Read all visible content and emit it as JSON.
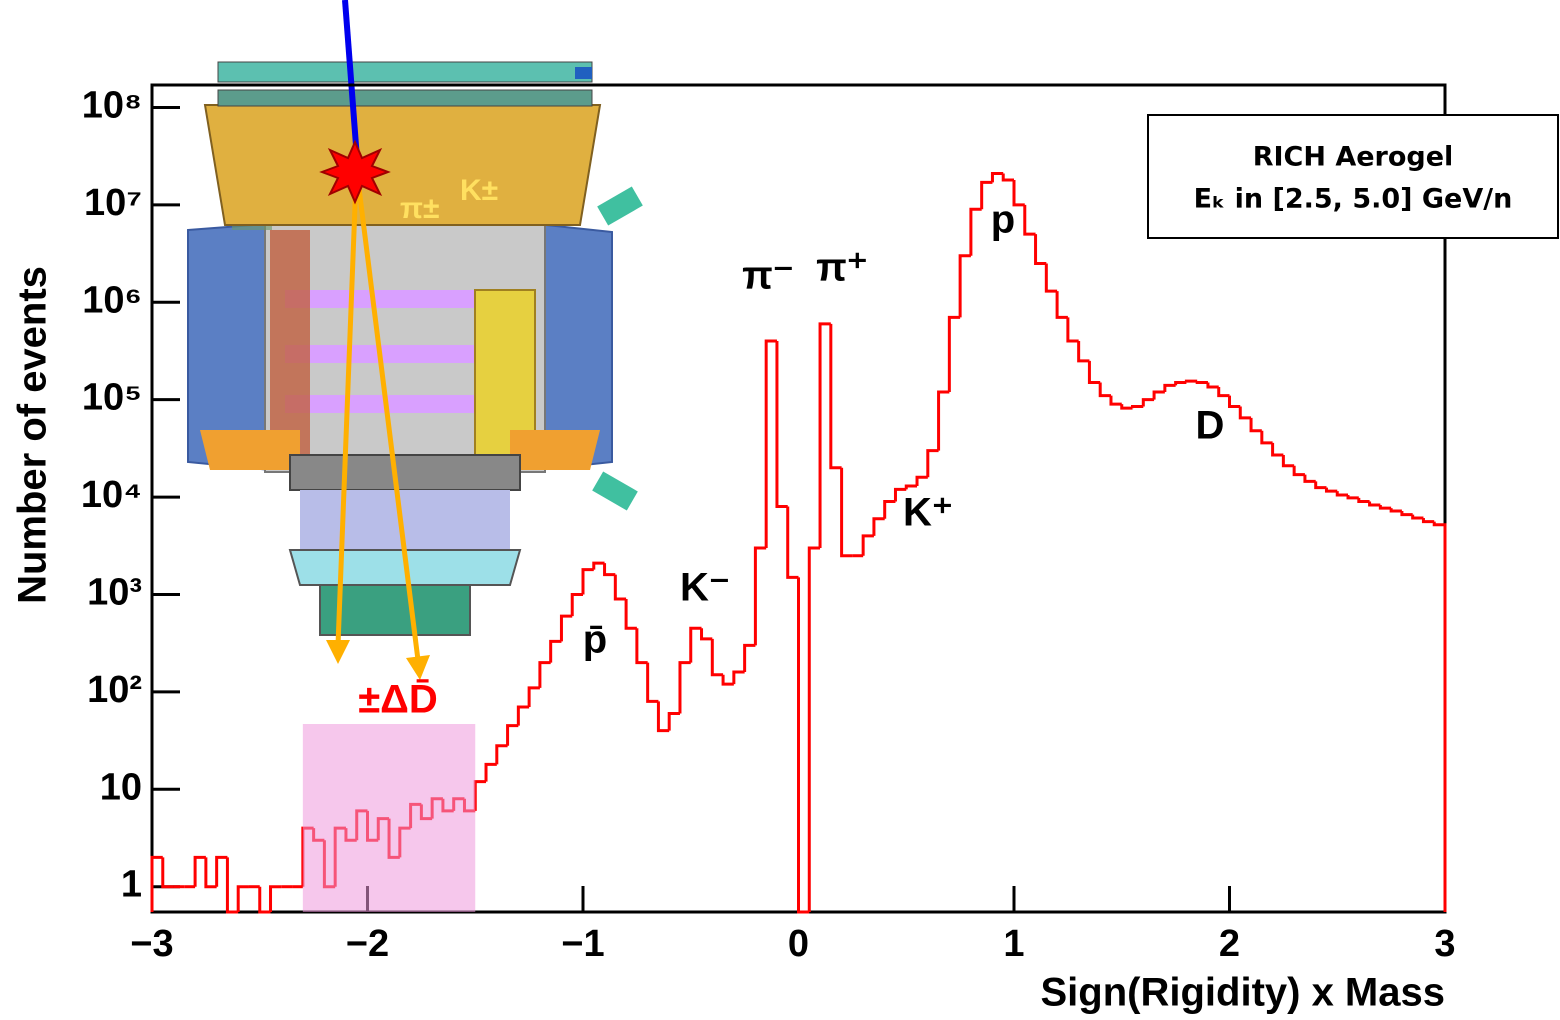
{
  "chart_data": {
    "type": "histogram",
    "x_label": "Sign(Rigidity) x Mass",
    "y_label": "Number of events",
    "log_y": true,
    "color": "#ff0000",
    "xlim": [
      -3,
      3
    ],
    "ylim": [
      0.55,
      170000000
    ],
    "xticks": [
      {
        "value": -3,
        "label": "−3"
      },
      {
        "value": -2,
        "label": "−2"
      },
      {
        "value": -1,
        "label": "−1"
      },
      0,
      1,
      2,
      3
    ],
    "yticks": [
      1,
      10,
      {
        "value": 100,
        "label": "10²"
      },
      {
        "value": 1000,
        "label": "10³"
      },
      {
        "value": 10000,
        "label": "10⁴"
      },
      {
        "value": 100000,
        "label": "10⁵"
      },
      {
        "value": 1000000,
        "label": "10⁶"
      },
      {
        "value": 10000000,
        "label": "10⁷"
      },
      {
        "value": 100000000,
        "label": "10⁸"
      }
    ],
    "bins": [
      -3,
      -2.95,
      -2.9,
      -2.85,
      -2.8,
      -2.75,
      -2.7,
      -2.65,
      -2.6,
      -2.55,
      -2.5,
      -2.45,
      -2.4,
      -2.35,
      -2.3,
      -2.25,
      -2.2,
      -2.15,
      -2.1,
      -2.05,
      -2,
      -1.95,
      -1.9,
      -1.85,
      -1.8,
      -1.75,
      -1.7,
      -1.65,
      -1.6,
      -1.55,
      -1.5,
      -1.45,
      -1.4,
      -1.35,
      -1.3,
      -1.25,
      -1.2,
      -1.15,
      -1.1,
      -1.05,
      -1,
      -0.95,
      -0.9,
      -0.85,
      -0.8,
      -0.75,
      -0.7,
      -0.65,
      -0.6,
      -0.55,
      -0.5,
      -0.45,
      -0.4,
      -0.35,
      -0.3,
      -0.25,
      -0.2,
      -0.15,
      -0.1,
      -0.05,
      0,
      0.05,
      0.1,
      0.15,
      0.2,
      0.25,
      0.3,
      0.35,
      0.4,
      0.45,
      0.5,
      0.55,
      0.6,
      0.65,
      0.7,
      0.75,
      0.8,
      0.85,
      0.9,
      0.95,
      1,
      1.05,
      1.1,
      1.15,
      1.2,
      1.25,
      1.3,
      1.35,
      1.4,
      1.45,
      1.5,
      1.55,
      1.6,
      1.65,
      1.7,
      1.75,
      1.8,
      1.85,
      1.9,
      1.95,
      2,
      2.05,
      2.1,
      2.15,
      2.2,
      2.25,
      2.3,
      2.35,
      2.4,
      2.45,
      2.5,
      2.55,
      2.6,
      2.65,
      2.7,
      2.75,
      2.8,
      2.85,
      2.9,
      2.95,
      3
    ],
    "values": [
      2,
      1,
      1,
      1,
      2,
      1,
      2,
      0,
      1,
      1,
      0,
      1,
      1,
      1,
      4,
      3,
      1,
      4,
      3,
      6,
      3,
      5,
      2,
      4,
      7,
      5,
      8,
      6,
      8,
      6,
      12,
      18,
      28,
      45,
      70,
      110,
      200,
      330,
      600,
      1000,
      1800,
      2100,
      1600,
      900,
      450,
      200,
      80,
      40,
      60,
      200,
      450,
      350,
      150,
      120,
      160,
      300,
      3000,
      400000,
      8000,
      1500,
      0,
      3000,
      600000,
      20000,
      2500,
      2500,
      4000,
      6000,
      9000,
      12000,
      13000,
      16000,
      30000,
      120000,
      700000,
      3000000,
      9000000,
      17000000,
      21000000,
      18000000,
      10000000,
      5000000,
      2500000,
      1300000,
      700000,
      400000,
      250000,
      150000,
      110000,
      90000,
      82000,
      85000,
      100000,
      120000,
      140000,
      150000,
      155000,
      150000,
      135000,
      110000,
      85000,
      65000,
      48000,
      36000,
      27000,
      21000,
      17000,
      14500,
      12500,
      11500,
      10500,
      9800,
      9000,
      8300,
      7700,
      7200,
      6600,
      6100,
      5600,
      5200
    ],
    "highlight": [
      -2.3,
      -1.5
    ],
    "highlight_label": "±ΔD̄",
    "annotations": [
      "p̄",
      "K⁻",
      "π⁻",
      "π⁺",
      "K⁺",
      "p",
      "D"
    ],
    "detector_labels": [
      "π±",
      "K±"
    ],
    "info_box": [
      "RICH Aerogel",
      "Eₖ in [2.5, 5.0] GeV/n"
    ]
  }
}
